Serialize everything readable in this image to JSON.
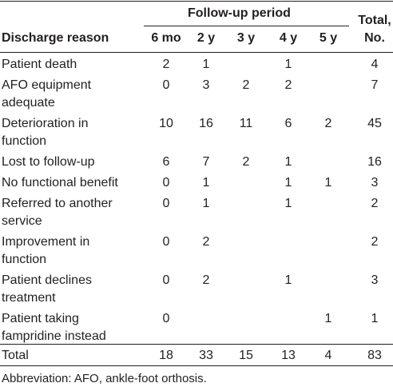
{
  "header": {
    "group_label": "Follow-up period",
    "reason_label": "Discharge reason",
    "periods": [
      "6 mo",
      "2 y",
      "3 y",
      "4 y",
      "5 y"
    ],
    "total_label_line1": "Total,",
    "total_label_line2": "No."
  },
  "rows": [
    {
      "reason": [
        "Patient death"
      ],
      "values": [
        "2",
        "1",
        "",
        "1",
        ""
      ],
      "total": "4"
    },
    {
      "reason": [
        "AFO equipment",
        "adequate"
      ],
      "values": [
        "0",
        "3",
        "2",
        "2",
        ""
      ],
      "total": "7"
    },
    {
      "reason": [
        "Deterioration in",
        "function"
      ],
      "values": [
        "10",
        "16",
        "11",
        "6",
        "2"
      ],
      "total": "45"
    },
    {
      "reason": [
        "Lost to follow-up"
      ],
      "values": [
        "6",
        "7",
        "2",
        "1",
        ""
      ],
      "total": "16"
    },
    {
      "reason": [
        "No functional benefit"
      ],
      "values": [
        "0",
        "1",
        "",
        "1",
        "1"
      ],
      "total": "3"
    },
    {
      "reason": [
        "Referred to another",
        "service"
      ],
      "values": [
        "0",
        "1",
        "",
        "1",
        ""
      ],
      "total": "2"
    },
    {
      "reason": [
        "Improvement in",
        "function"
      ],
      "values": [
        "0",
        "2",
        "",
        "",
        ""
      ],
      "total": "2"
    },
    {
      "reason": [
        "Patient declines",
        "treatment"
      ],
      "values": [
        "0",
        "2",
        "",
        "1",
        ""
      ],
      "total": "3"
    },
    {
      "reason": [
        "Patient taking",
        "fampridine instead"
      ],
      "values": [
        "0",
        "",
        "",
        "",
        "1"
      ],
      "total": "1"
    }
  ],
  "total_row": {
    "label": "Total",
    "values": [
      "18",
      "33",
      "15",
      "13",
      "4"
    ],
    "total": "83"
  },
  "footnote": "Abbreviation: AFO, ankle-foot orthosis."
}
